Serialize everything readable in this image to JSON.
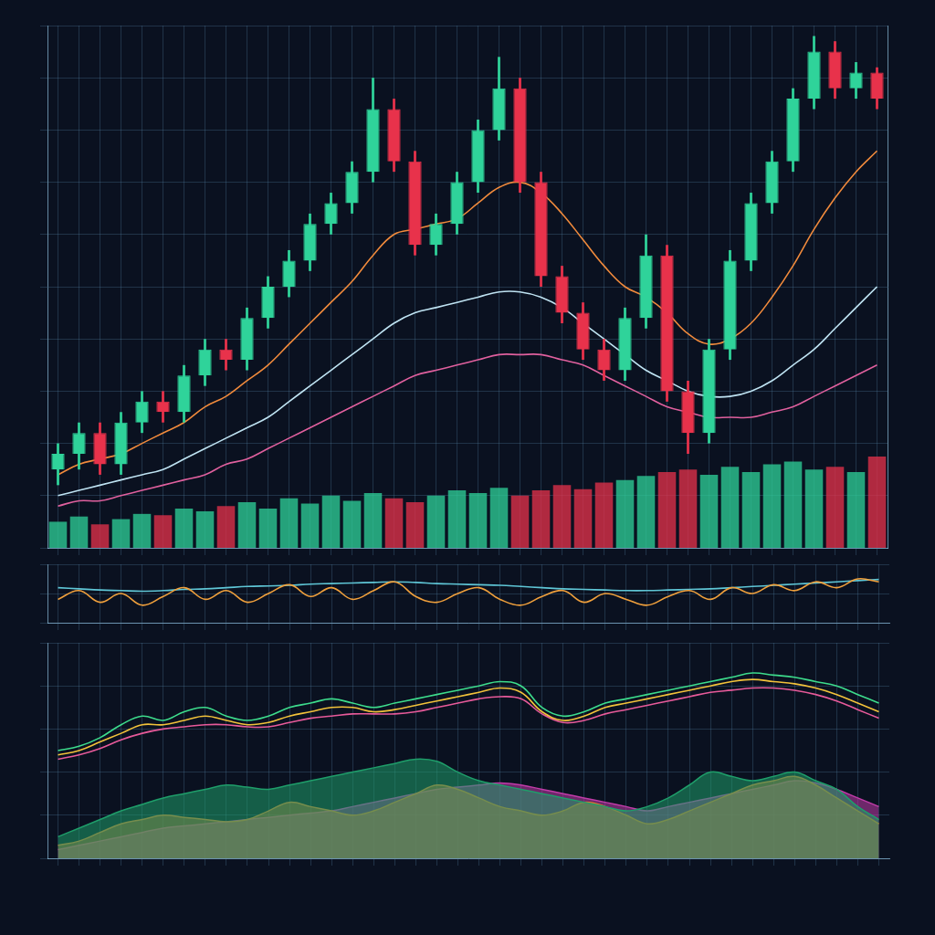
{
  "chart_data": [
    {
      "type": "candlestick",
      "categories": [
        null,
        null,
        null,
        null,
        null,
        null,
        null,
        null,
        null,
        null,
        null,
        null,
        null,
        null,
        null,
        null,
        null,
        null,
        null,
        null,
        null,
        null,
        null,
        null,
        null,
        null,
        null,
        null,
        null,
        null,
        null,
        null,
        null,
        null,
        null,
        null,
        null,
        null,
        null,
        null
      ],
      "ylim": [
        0,
        100
      ],
      "yticks": [
        0,
        10,
        20,
        30,
        40,
        50,
        60,
        70,
        80,
        90,
        100
      ],
      "y2lim": [
        0,
        400
      ],
      "y2ticks": [
        0,
        100,
        200,
        300,
        400
      ],
      "grid": true,
      "tick_labels": false,
      "series": [
        {
          "type": "candlestick",
          "open": [
            15,
            18,
            22,
            16,
            24,
            28,
            26,
            33,
            38,
            36,
            44,
            50,
            55,
            62,
            66,
            72,
            84,
            74,
            58,
            62,
            70,
            80,
            88,
            70,
            52,
            45,
            38,
            34,
            44,
            56,
            30,
            22,
            38,
            55,
            66,
            74,
            86,
            95,
            88,
            91
          ],
          "high": [
            20,
            24,
            24,
            26,
            30,
            30,
            35,
            40,
            40,
            46,
            52,
            57,
            64,
            68,
            74,
            90,
            86,
            76,
            64,
            72,
            82,
            94,
            90,
            72,
            54,
            47,
            40,
            46,
            60,
            58,
            32,
            40,
            57,
            68,
            76,
            88,
            98,
            97,
            93,
            92
          ],
          "low": [
            12,
            15,
            14,
            14,
            22,
            24,
            24,
            31,
            34,
            34,
            42,
            48,
            53,
            60,
            64,
            70,
            72,
            56,
            56,
            60,
            68,
            78,
            68,
            50,
            43,
            36,
            32,
            32,
            42,
            28,
            18,
            20,
            36,
            53,
            64,
            72,
            84,
            86,
            86,
            84
          ],
          "close": [
            18,
            22,
            16,
            24,
            28,
            26,
            33,
            38,
            36,
            44,
            50,
            55,
            62,
            66,
            72,
            84,
            74,
            58,
            62,
            70,
            80,
            88,
            70,
            52,
            45,
            38,
            34,
            44,
            56,
            30,
            22,
            38,
            55,
            66,
            74,
            86,
            95,
            88,
            91,
            86
          ],
          "colors": [
            "#2fd39a",
            "#2fd39a",
            "#e8324b",
            "#2fd39a",
            "#2fd39a",
            "#e8324b",
            "#2fd39a",
            "#2fd39a",
            "#e8324b",
            "#2fd39a",
            "#2fd39a",
            "#2fd39a",
            "#2fd39a",
            "#2fd39a",
            "#2fd39a",
            "#2fd39a",
            "#e8324b",
            "#e8324b",
            "#2fd39a",
            "#2fd39a",
            "#2fd39a",
            "#2fd39a",
            "#e8324b",
            "#e8324b",
            "#e8324b",
            "#e8324b",
            "#e8324b",
            "#2fd39a",
            "#2fd39a",
            "#e8324b",
            "#e8324b",
            "#2fd39a",
            "#2fd39a",
            "#2fd39a",
            "#2fd39a",
            "#2fd39a",
            "#2fd39a",
            "#e8324b",
            "#2fd39a",
            "#e8324b"
          ]
        },
        {
          "type": "bar",
          "axis": "y2",
          "values": [
            20,
            24,
            18,
            22,
            26,
            25,
            30,
            28,
            32,
            35,
            30,
            38,
            34,
            40,
            36,
            42,
            38,
            35,
            40,
            44,
            42,
            46,
            40,
            44,
            48,
            45,
            50,
            52,
            55,
            58,
            60,
            56,
            62,
            58,
            64,
            66,
            60,
            62,
            58,
            70
          ],
          "colors": [
            "#2fd39a",
            "#2fd39a",
            "#e8324b",
            "#2fd39a",
            "#2fd39a",
            "#e8324b",
            "#2fd39a",
            "#2fd39a",
            "#e8324b",
            "#2fd39a",
            "#2fd39a",
            "#2fd39a",
            "#2fd39a",
            "#2fd39a",
            "#2fd39a",
            "#2fd39a",
            "#e8324b",
            "#e8324b",
            "#2fd39a",
            "#2fd39a",
            "#2fd39a",
            "#2fd39a",
            "#e8324b",
            "#e8324b",
            "#e8324b",
            "#e8324b",
            "#e8324b",
            "#2fd39a",
            "#2fd39a",
            "#e8324b",
            "#e8324b",
            "#2fd39a",
            "#2fd39a",
            "#2fd39a",
            "#2fd39a",
            "#2fd39a",
            "#2fd39a",
            "#e8324b",
            "#2fd39a",
            "#e8324b"
          ]
        },
        {
          "type": "line",
          "color": "#f08a3c",
          "values": [
            14,
            16,
            17,
            18,
            20,
            22,
            24,
            27,
            29,
            32,
            35,
            39,
            43,
            47,
            51,
            56,
            60,
            61,
            62,
            63,
            66,
            69,
            70,
            68,
            64,
            59,
            54,
            50,
            48,
            45,
            41,
            39,
            40,
            43,
            48,
            54,
            61,
            67,
            72,
            76
          ]
        },
        {
          "type": "line",
          "color": "#bfe3f2",
          "values": [
            10,
            11,
            12,
            13,
            14,
            15,
            17,
            19,
            21,
            23,
            25,
            28,
            31,
            34,
            37,
            40,
            43,
            45,
            46,
            47,
            48,
            49,
            49,
            48,
            46,
            43,
            40,
            37,
            34,
            32,
            30,
            29,
            29,
            30,
            32,
            35,
            38,
            42,
            46,
            50
          ]
        },
        {
          "type": "line",
          "color": "#e0609e",
          "values": [
            8,
            9,
            9,
            10,
            11,
            12,
            13,
            14,
            16,
            17,
            19,
            21,
            23,
            25,
            27,
            29,
            31,
            33,
            34,
            35,
            36,
            37,
            37,
            37,
            36,
            35,
            33,
            31,
            29,
            27,
            26,
            25,
            25,
            25,
            26,
            27,
            29,
            31,
            33,
            35
          ]
        }
      ]
    },
    {
      "type": "line",
      "categories": [
        null,
        null,
        null,
        null,
        null,
        null,
        null,
        null,
        null,
        null,
        null,
        null,
        null,
        null,
        null,
        null,
        null,
        null,
        null,
        null,
        null,
        null,
        null,
        null,
        null,
        null,
        null,
        null,
        null,
        null,
        null,
        null,
        null,
        null,
        null,
        null,
        null,
        null,
        null,
        null
      ],
      "ylim": [
        0,
        100
      ],
      "yticks": [
        0,
        50,
        100
      ],
      "grid": true,
      "tick_labels": false,
      "series": [
        {
          "type": "line",
          "color": "#f0a03c",
          "values": [
            40,
            55,
            35,
            50,
            30,
            45,
            60,
            40,
            55,
            35,
            50,
            65,
            45,
            60,
            40,
            55,
            70,
            45,
            35,
            50,
            60,
            40,
            30,
            45,
            55,
            35,
            50,
            40,
            30,
            45,
            55,
            40,
            60,
            50,
            65,
            55,
            70,
            60,
            75,
            70
          ]
        },
        {
          "type": "line",
          "color": "#5fc6d6",
          "values": [
            60,
            58,
            56,
            55,
            54,
            55,
            57,
            58,
            60,
            62,
            63,
            64,
            66,
            67,
            68,
            69,
            70,
            69,
            67,
            66,
            65,
            64,
            62,
            60,
            58,
            57,
            56,
            55,
            55,
            56,
            57,
            58,
            60,
            62,
            64,
            66,
            68,
            70,
            72,
            74
          ]
        }
      ]
    },
    {
      "type": "line",
      "categories": [
        null,
        null,
        null,
        null,
        null,
        null,
        null,
        null,
        null,
        null,
        null,
        null,
        null,
        null,
        null,
        null,
        null,
        null,
        null,
        null,
        null,
        null,
        null,
        null,
        null,
        null,
        null,
        null,
        null,
        null,
        null,
        null,
        null,
        null,
        null,
        null,
        null,
        null,
        null,
        null
      ],
      "ylim": [
        0,
        100
      ],
      "yticks": [
        0,
        20,
        40,
        60,
        80,
        100
      ],
      "grid": true,
      "tick_labels": false,
      "series": [
        {
          "type": "area",
          "color": "#1f9e6a",
          "values": [
            10,
            14,
            18,
            22,
            25,
            28,
            30,
            32,
            34,
            33,
            32,
            34,
            36,
            38,
            40,
            42,
            44,
            46,
            45,
            40,
            36,
            34,
            32,
            30,
            28,
            26,
            24,
            22,
            24,
            28,
            34,
            40,
            38,
            36,
            38,
            40,
            36,
            32,
            24,
            18
          ]
        },
        {
          "type": "area",
          "color": "#e0782a",
          "values": [
            6,
            8,
            12,
            16,
            18,
            20,
            19,
            18,
            17,
            18,
            22,
            26,
            24,
            22,
            20,
            22,
            26,
            30,
            34,
            32,
            28,
            24,
            22,
            20,
            22,
            26,
            24,
            20,
            16,
            18,
            22,
            26,
            30,
            34,
            36,
            38,
            34,
            28,
            22,
            16
          ]
        },
        {
          "type": "area",
          "color": "#c03ca8",
          "values": [
            4,
            6,
            8,
            10,
            12,
            14,
            15,
            16,
            17,
            18,
            19,
            20,
            21,
            22,
            24,
            26,
            28,
            30,
            32,
            33,
            34,
            35,
            34,
            32,
            30,
            28,
            26,
            24,
            22,
            24,
            26,
            28,
            30,
            32,
            34,
            36,
            35,
            32,
            28,
            24
          ]
        },
        {
          "type": "line",
          "color": "#3ddc8c",
          "values": [
            50,
            52,
            56,
            62,
            66,
            64,
            68,
            70,
            66,
            64,
            66,
            70,
            72,
            74,
            72,
            70,
            72,
            74,
            76,
            78,
            80,
            82,
            80,
            70,
            66,
            68,
            72,
            74,
            76,
            78,
            80,
            82,
            84,
            86,
            85,
            84,
            82,
            80,
            76,
            72
          ]
        },
        {
          "type": "line",
          "color": "#f2c23a",
          "values": [
            48,
            50,
            54,
            58,
            62,
            62,
            64,
            66,
            64,
            62,
            63,
            66,
            68,
            70,
            70,
            68,
            69,
            71,
            73,
            75,
            77,
            79,
            77,
            68,
            64,
            66,
            70,
            72,
            74,
            76,
            78,
            80,
            82,
            83,
            82,
            81,
            79,
            76,
            72,
            68
          ]
        },
        {
          "type": "line",
          "color": "#e75a9a",
          "values": [
            46,
            48,
            51,
            55,
            58,
            60,
            61,
            62,
            62,
            61,
            61,
            63,
            65,
            66,
            67,
            67,
            67,
            68,
            70,
            72,
            74,
            75,
            74,
            67,
            63,
            64,
            67,
            69,
            71,
            73,
            75,
            77,
            78,
            79,
            79,
            78,
            76,
            73,
            69,
            65
          ]
        }
      ]
    }
  ]
}
